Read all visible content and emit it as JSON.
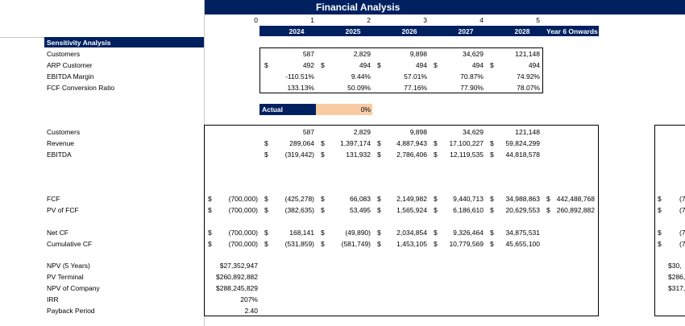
{
  "header": {
    "title": "Financial Analysis",
    "periods": [
      "0",
      "1",
      "2",
      "3",
      "4",
      "5"
    ],
    "years": [
      "2024",
      "2025",
      "2026",
      "2027",
      "2028",
      "Year 6 Onwards"
    ]
  },
  "sensitivity": {
    "title": "Sensitivity Analysis",
    "rows": [
      {
        "label": "Customers",
        "values": [
          "587",
          "2,829",
          "9,898",
          "34,629",
          "121,148"
        ]
      },
      {
        "label": "ARP Customer",
        "currency": "$",
        "values": [
          "492",
          "494",
          "494",
          "494",
          "494"
        ]
      },
      {
        "label": "EBITDA Margin",
        "values": [
          "-110.51%",
          "9.44%",
          "57.01%",
          "70.87%",
          "74.92%"
        ]
      },
      {
        "label": "FCF Conversion Ratio",
        "values": [
          "133.13%",
          "50.09%",
          "77.16%",
          "77.90%",
          "78.07%"
        ]
      }
    ]
  },
  "scenario": {
    "label": "Actual",
    "value": "0%"
  },
  "main": {
    "rows": [
      {
        "label": "Customers",
        "values": [
          null,
          "587",
          "2,829",
          "9,898",
          "34,629",
          "121,148",
          null
        ]
      },
      {
        "label": "Revenue",
        "currency": "$",
        "values": [
          null,
          "289,064",
          "1,397,174",
          "4,887,943",
          "17,100,227",
          "59,824,299",
          null
        ]
      },
      {
        "label": "EBITDA",
        "currency": "$",
        "values": [
          null,
          "(319,442)",
          "131,932",
          "2,786,406",
          "12,119,535",
          "44,818,578",
          null
        ]
      },
      {
        "label": "FCF",
        "currency": "$",
        "values": [
          "(700,000)",
          "(425,278)",
          "66,083",
          "2,149,982",
          "9,440,713",
          "34,988,863",
          "442,488,768"
        ]
      },
      {
        "label": "PV of FCF",
        "currency": "$",
        "values": [
          "(700,000)",
          "(382,635)",
          "53,495",
          "1,565,924",
          "6,186,610",
          "20,629,553",
          "260,892,882"
        ]
      },
      {
        "label": "Net CF",
        "currency": "$",
        "values": [
          "(700,000)",
          "168,141",
          "(49,890)",
          "2,034,854",
          "9,326,464",
          "34,875,531",
          null
        ]
      },
      {
        "label": "Cumulative CF",
        "currency": "$",
        "values": [
          "(700,000)",
          "(531,859)",
          "(581,749)",
          "1,453,105",
          "10,779,569",
          "45,655,100",
          null
        ]
      }
    ],
    "summary": [
      {
        "label": "NPV (5 Years)",
        "value": "$27,352,947"
      },
      {
        "label": "PV Terminal",
        "value": "$260,892,882"
      },
      {
        "label": "NPV of Company",
        "value": "$288,245,829"
      },
      {
        "label": "IRR",
        "value": "207%"
      },
      {
        "label": "Payback Period",
        "value": "2.40"
      }
    ]
  },
  "side": {
    "currency": "$",
    "cash_rows": [
      "(7",
      "(7",
      "(7",
      "(7"
    ],
    "summary": [
      "$30,",
      "$286,",
      "$317,"
    ]
  }
}
